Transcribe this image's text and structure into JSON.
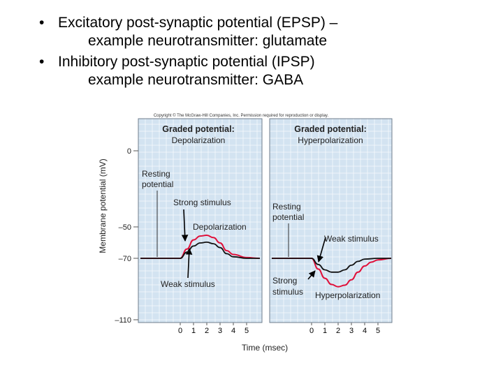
{
  "bullets": [
    {
      "line1": "Excitatory post-synaptic potential (EPSP) –",
      "line2": "example neurotransmitter: glutamate"
    },
    {
      "line1": "Inhibitory post-synaptic potential (IPSP)",
      "line2": "example neurotransmitter: GABA"
    }
  ],
  "figure": {
    "copyright": "Copyright © The McGraw-Hill Companies, Inc. Permission required for reproduction or display.",
    "ylabel": "Membrane potential (mV)",
    "xlabel": "Time (msec)",
    "y_ticks": [
      "0",
      "–50",
      "–70",
      "–110"
    ],
    "x_ticks": [
      "0",
      "1",
      "2",
      "3",
      "4",
      "5"
    ],
    "colors": {
      "panel_bg": "#d3e3f1",
      "grid": "#ffffff",
      "strong_curve": "#e0103a",
      "weak_curve": "#111111"
    },
    "left_panel": {
      "title": "Graded potential:",
      "subtitle": "Depolarization",
      "labels": {
        "resting_line1": "Resting",
        "resting_line2": "potential",
        "strong": "Strong stimulus",
        "depol": "Depolarization",
        "weak": "Weak stimulus"
      }
    },
    "right_panel": {
      "title": "Graded potential:",
      "subtitle": "Hyperpolarization",
      "labels": {
        "resting_line1": "Resting",
        "resting_line2": "potential",
        "weak": "Weak stimulus",
        "strong_line1": "Strong",
        "strong_line2": "stimulus",
        "hyperpol": "Hyperpolarization"
      }
    }
  },
  "chart_data": [
    {
      "type": "line",
      "title": "Graded potential: Depolarization",
      "xlabel": "Time (msec)",
      "ylabel": "Membrane potential (mV)",
      "ylim": [
        -110,
        0
      ],
      "y_ticks": [
        0,
        -50,
        -70,
        -110
      ],
      "x_ticks": [
        0,
        1,
        2,
        3,
        4,
        5
      ],
      "grid": true,
      "series": [
        {
          "name": "Strong stimulus",
          "color": "#e0103a",
          "points": [
            [
              -3,
              -70
            ],
            [
              0,
              -70
            ],
            [
              0.5,
              -64
            ],
            [
              1,
              -58
            ],
            [
              1.5,
              -55.5
            ],
            [
              2,
              -55
            ],
            [
              2.5,
              -56.5
            ],
            [
              3,
              -60
            ],
            [
              3.5,
              -65
            ],
            [
              4,
              -67.5
            ],
            [
              5,
              -69.5
            ],
            [
              6,
              -70
            ]
          ]
        },
        {
          "name": "Weak stimulus",
          "color": "#111111",
          "points": [
            [
              -3,
              -70
            ],
            [
              0,
              -70
            ],
            [
              0.5,
              -66
            ],
            [
              1,
              -62
            ],
            [
              1.5,
              -60
            ],
            [
              2,
              -59.5
            ],
            [
              2.5,
              -60.5
            ],
            [
              3,
              -63
            ],
            [
              3.5,
              -67
            ],
            [
              4,
              -69
            ],
            [
              5,
              -70
            ],
            [
              6,
              -70
            ]
          ]
        }
      ]
    },
    {
      "type": "line",
      "title": "Graded potential: Hyperpolarization",
      "xlabel": "Time (msec)",
      "ylabel": "Membrane potential (mV)",
      "ylim": [
        -110,
        0
      ],
      "y_ticks": [
        0,
        -50,
        -70,
        -110
      ],
      "x_ticks": [
        0,
        1,
        2,
        3,
        4,
        5
      ],
      "grid": true,
      "series": [
        {
          "name": "Strong stimulus",
          "color": "#e0103a",
          "points": [
            [
              -3,
              -70
            ],
            [
              0,
              -70
            ],
            [
              0.5,
              -77
            ],
            [
              1,
              -83
            ],
            [
              1.5,
              -87
            ],
            [
              2,
              -88.5
            ],
            [
              2.5,
              -87.5
            ],
            [
              3,
              -84
            ],
            [
              3.5,
              -79
            ],
            [
              4,
              -75
            ],
            [
              4.5,
              -72.5
            ],
            [
              5,
              -71
            ],
            [
              6,
              -70
            ]
          ]
        },
        {
          "name": "Weak stimulus",
          "color": "#111111",
          "points": [
            [
              -3,
              -70
            ],
            [
              0,
              -70
            ],
            [
              0.5,
              -74
            ],
            [
              1,
              -77.5
            ],
            [
              1.5,
              -79
            ],
            [
              2,
              -79
            ],
            [
              2.5,
              -77.5
            ],
            [
              3,
              -74.5
            ],
            [
              3.5,
              -72
            ],
            [
              4,
              -70.5
            ],
            [
              5,
              -70
            ],
            [
              6,
              -70
            ]
          ]
        }
      ]
    }
  ]
}
